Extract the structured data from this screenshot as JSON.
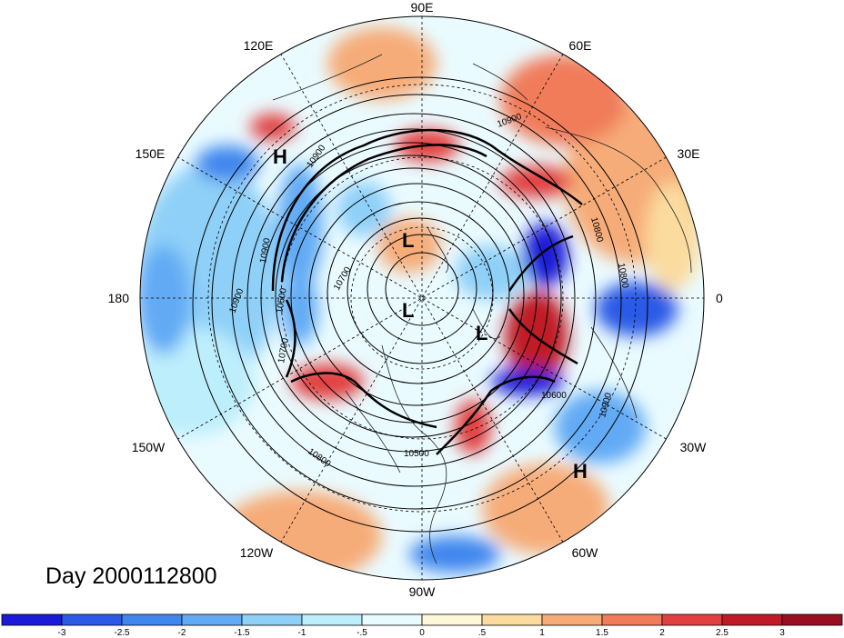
{
  "title": "Day 2000112800",
  "longitude_labels": {
    "e90": "90E",
    "e60": "60E",
    "e30": "30E",
    "zero": "0",
    "w30": "30W",
    "w60": "60W",
    "w90": "90W",
    "w120": "120W",
    "w150": "150W",
    "d180": "180",
    "e150": "150E",
    "e120": "120E"
  },
  "pressure_centers": {
    "high_pacific": "H",
    "high_atlantic": "H",
    "low_1": "L",
    "low_2": "L",
    "low_3": "L"
  },
  "contour_labels": {
    "c1": "10900",
    "c2": "10900",
    "c3": "10900",
    "c4": "10900",
    "c5": "10900",
    "c6": "10800",
    "c7": "10800",
    "c8": "10800",
    "c9": "10700",
    "c10": "10700",
    "c11": "10600",
    "c12": "10500",
    "c13": "10500"
  },
  "colorbar": {
    "ticks": [
      "-3",
      "-2.5",
      "-2",
      "-1.5",
      "-1",
      "-.5",
      "0",
      ".5",
      "1",
      "1.5",
      "2",
      "2.5",
      "3"
    ],
    "colors": [
      "#1a1ad8",
      "#2c5ae6",
      "#3f86ee",
      "#62aaf4",
      "#8fd0f8",
      "#bdeefc",
      "#e8fbfe",
      "#fff8d8",
      "#fbdb9e",
      "#f6ac78",
      "#f07c5a",
      "#e24040",
      "#c01a28",
      "#9a0e22"
    ]
  }
}
